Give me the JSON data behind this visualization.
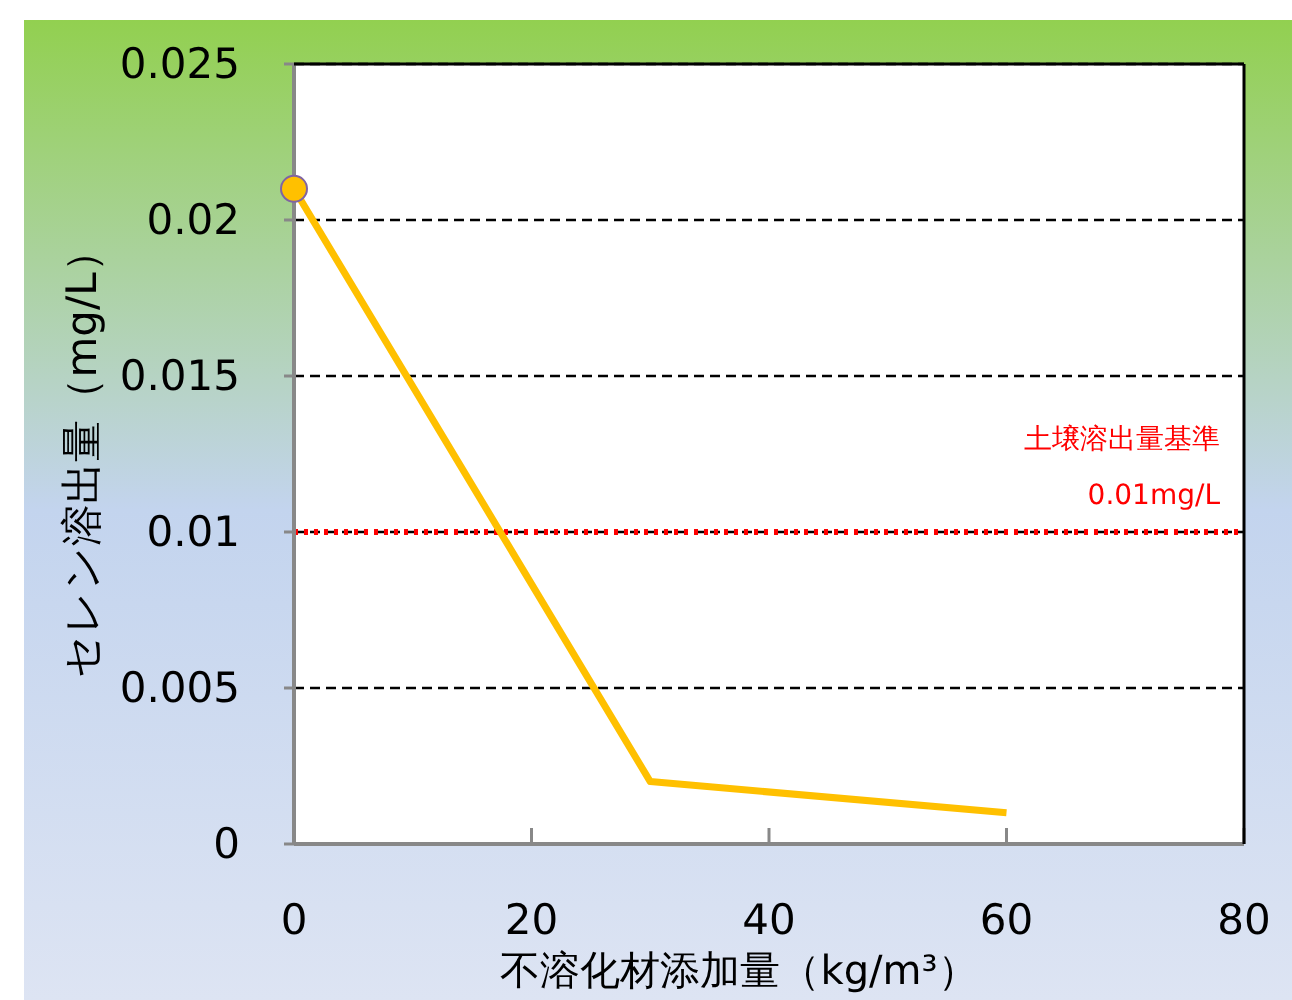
{
  "chart_data": {
    "type": "line",
    "x": [
      0,
      30,
      60
    ],
    "series": [
      {
        "type": "line",
        "color": "#ffc000",
        "marker": "none",
        "values": [
          0.021,
          0.002,
          0.001
        ]
      },
      {
        "type": "scatter",
        "color": "#ffc000",
        "marker": "circle",
        "x": [
          0
        ],
        "values": [
          0.021
        ]
      }
    ],
    "xlabel": "不溶化材添加量（kg/m³）",
    "ylabel": "セレン溶出量（mg/L）",
    "xlim": [
      0,
      80
    ],
    "xticks": [
      0,
      20,
      40,
      60,
      80
    ],
    "ylim": [
      0,
      0.025
    ],
    "yticks": [
      0,
      0.005,
      0.01,
      0.015,
      0.02,
      0.025
    ],
    "grid": "y",
    "ref_lines": [
      {
        "axis": "y",
        "value": 0.01,
        "label": "土壌溶出量基準\n0.01mg/L",
        "color": "#ff0000",
        "line_style": "dotted"
      }
    ]
  }
}
